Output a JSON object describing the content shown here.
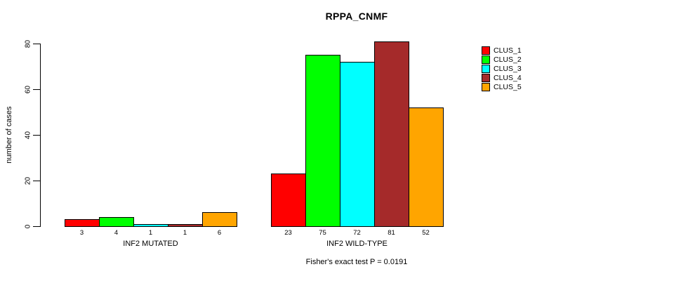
{
  "title": "RPPA_CNMF",
  "footer": "Fisher's exact test P = 0.0191",
  "chart_data": {
    "type": "bar",
    "title": "RPPA_CNMF",
    "xlabel": "",
    "ylabel": "number of cases",
    "categories": [
      "INF2 MUTATED",
      "INF2 WILD-TYPE"
    ],
    "series": [
      {
        "name": "CLUS_1",
        "color": "#ff0000",
        "values": [
          3,
          23
        ]
      },
      {
        "name": "CLUS_2",
        "color": "#00ff00",
        "values": [
          4,
          75
        ]
      },
      {
        "name": "CLUS_3",
        "color": "#00ffff",
        "values": [
          1,
          72
        ]
      },
      {
        "name": "CLUS_4",
        "color": "#a52a2a",
        "values": [
          1,
          81
        ]
      },
      {
        "name": "CLUS_5",
        "color": "#ffa500",
        "values": [
          6,
          52
        ]
      }
    ],
    "yticks": [
      0,
      20,
      40,
      60,
      80
    ],
    "ylim": [
      0,
      84
    ],
    "grid": false,
    "bar_value_labels": true,
    "legend_position": "top-right",
    "annotation": "Fisher's exact test P = 0.0191",
    "background": "#ffffff",
    "bar_border_color": "#000000"
  }
}
